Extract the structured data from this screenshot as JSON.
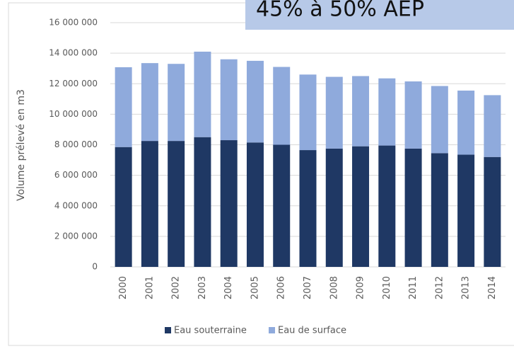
{
  "chart_data": {
    "type": "stacked_bar",
    "annotation": "45% à 50% AEP",
    "y_label": "Volume prélevé en m3",
    "categories": [
      "2000",
      "2001",
      "2002",
      "2003",
      "2004",
      "2005",
      "2006",
      "2007",
      "2008",
      "2009",
      "2010",
      "2011",
      "2012",
      "2013",
      "2014"
    ],
    "series": [
      {
        "name": "Eau souterraine",
        "color": "#1f3864",
        "values": [
          7850000,
          8250000,
          8250000,
          8500000,
          8300000,
          8150000,
          8000000,
          7650000,
          7750000,
          7900000,
          7950000,
          7750000,
          7450000,
          7350000,
          7200000
        ]
      },
      {
        "name": "Eau de surface",
        "color": "#8faadc",
        "values": [
          5230000,
          5100000,
          5050000,
          5600000,
          5300000,
          5350000,
          5100000,
          4950000,
          4700000,
          4600000,
          4400000,
          4400000,
          4400000,
          4200000,
          4050000
        ]
      }
    ],
    "ylim": [
      0,
      16000000
    ],
    "yticks": [
      0,
      {
        "value": 2000000,
        "label": "2 000 000"
      },
      {
        "value": 4000000,
        "label": "4 000 000"
      },
      {
        "value": 6000000,
        "label": "6 000 000"
      },
      {
        "value": 8000000,
        "label": "8 000 000"
      },
      {
        "value": 10000000,
        "label": "10 000 000"
      },
      {
        "value": 12000000,
        "label": "12 000 000"
      },
      {
        "value": 14000000,
        "label": "14 000 000"
      },
      {
        "value": 16000000,
        "label": "16 000 000"
      }
    ],
    "grid": true,
    "legend": "bottom"
  }
}
